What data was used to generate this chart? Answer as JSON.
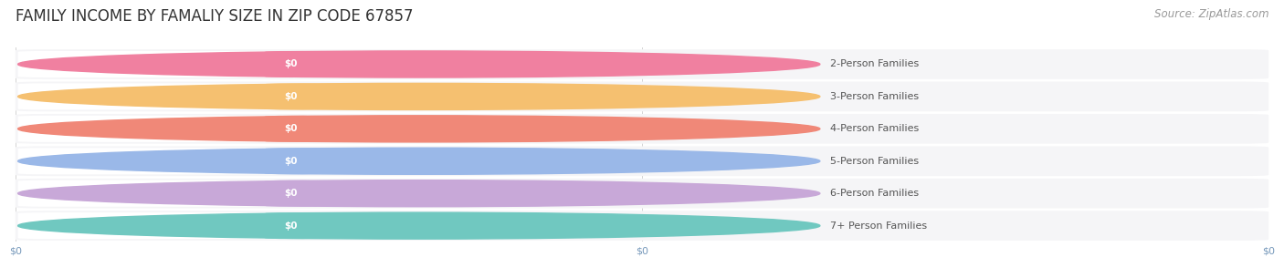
{
  "title": "FAMILY INCOME BY FAMALIY SIZE IN ZIP CODE 67857",
  "source_text": "Source: ZipAtlas.com",
  "categories": [
    "2-Person Families",
    "3-Person Families",
    "4-Person Families",
    "5-Person Families",
    "6-Person Families",
    "7+ Person Families"
  ],
  "values": [
    0,
    0,
    0,
    0,
    0,
    0
  ],
  "bar_colors": [
    "#f080a0",
    "#f5c070",
    "#f08878",
    "#9ab8e8",
    "#c8a8d8",
    "#70c8c0"
  ],
  "bar_bg_color": "#ededee",
  "row_bg_color": "#f5f5f7",
  "background_color": "#ffffff",
  "value_labels": [
    "$0",
    "$0",
    "$0",
    "$0",
    "$0",
    "$0"
  ],
  "x_tick_labels": [
    "$0",
    "$0",
    "$0"
  ],
  "title_fontsize": 12,
  "source_fontsize": 8.5,
  "label_fontsize": 8,
  "value_fontsize": 7.5
}
